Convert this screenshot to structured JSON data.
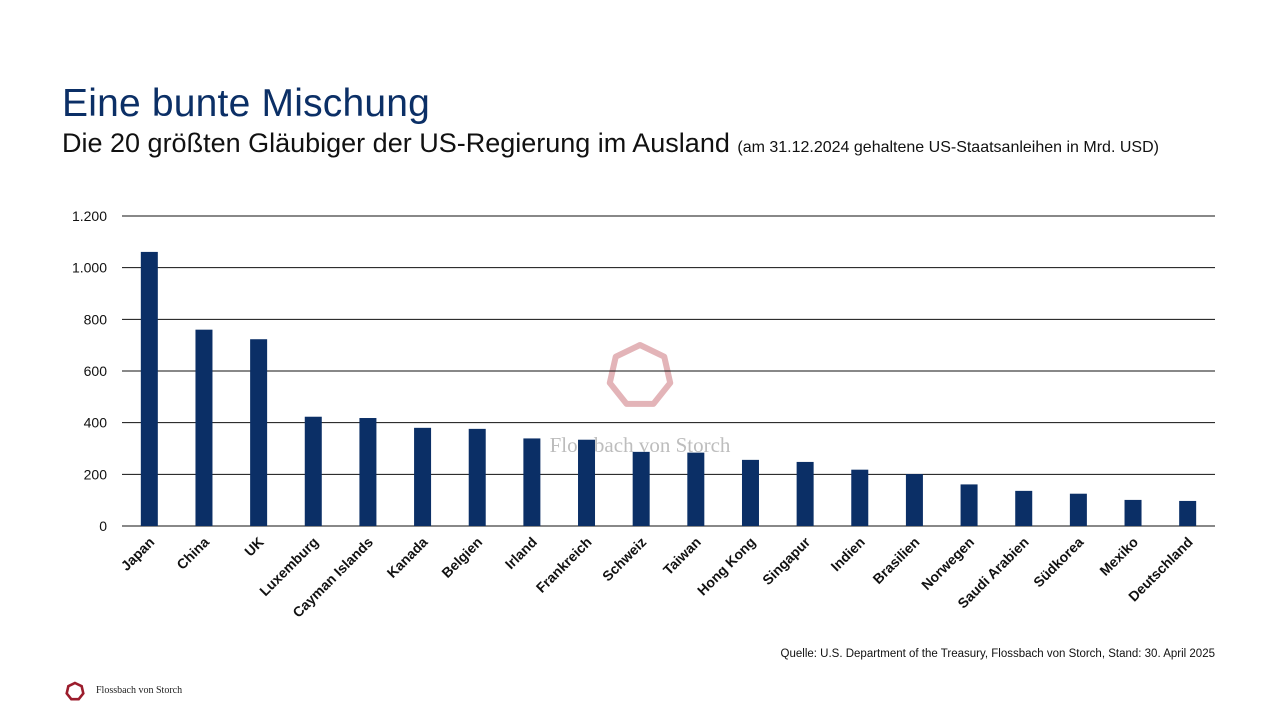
{
  "header": {
    "title": "Eine bunte Mischung",
    "subtitle": "Die 20 größten Gläubiger der US-Regierung im Ausland",
    "subtitle_note": "(am 31.12.2024 gehaltene US-Staatsanleihen in Mrd. USD)"
  },
  "colors": {
    "bar": "#0b2f66",
    "title": "#0b2f66",
    "watermark": "#e3b4b8",
    "logo": "#9b1c2c"
  },
  "watermark": {
    "text": "Flossbach von Storch",
    "icon": "heptagon-logo-icon"
  },
  "chart_data": {
    "type": "bar",
    "title": "Die 20 größten Gläubiger der US-Regierung im Ausland",
    "xlabel": "",
    "ylabel": "",
    "ylim": [
      0,
      1200
    ],
    "yticks": [
      0,
      200,
      400,
      600,
      800,
      1000,
      1200
    ],
    "ytick_labels": [
      "0",
      "200",
      "400",
      "600",
      "800",
      "1.000",
      "1.200"
    ],
    "grid": true,
    "legend": "none",
    "categories": [
      "Japan",
      "China",
      "UK",
      "Luxemburg",
      "Cayman Islands",
      "Kanada",
      "Belgien",
      "Irland",
      "Frankreich",
      "Schweiz",
      "Taiwan",
      "Hong Kong",
      "Singapur",
      "Indien",
      "Brasilien",
      "Norwegen",
      "Saudi Arabien",
      "Südkorea",
      "Mexiko",
      "Deutschland"
    ],
    "values": [
      1061,
      760,
      723,
      423,
      418,
      380,
      376,
      339,
      334,
      287,
      284,
      256,
      248,
      218,
      201,
      161,
      136,
      125,
      101,
      97
    ]
  },
  "footer": {
    "source": "Quelle: U.S. Department of the Treasury, Flossbach von Storch, Stand: 30. April 2025",
    "brand": "Flossbach von Storch",
    "logo_icon": "heptagon-logo-icon"
  }
}
